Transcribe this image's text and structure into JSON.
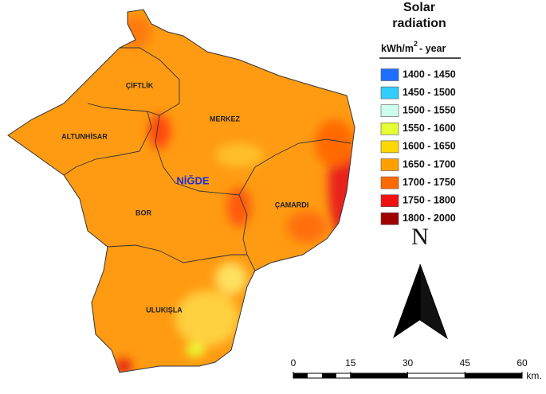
{
  "legend": {
    "title": "Solar radiation",
    "unit_base": "kWh/m",
    "unit_exponent": "2",
    "unit_rest": "- year",
    "items": [
      {
        "label": "1400 - 1450",
        "color": "#1f6fff"
      },
      {
        "label": "1450 - 1500",
        "color": "#33ccff"
      },
      {
        "label": "1500 - 1550",
        "color": "#ccffee"
      },
      {
        "label": "1550 - 1600",
        "color": "#e6ff33"
      },
      {
        "label": "1600 - 1650",
        "color": "#ffd700"
      },
      {
        "label": "1650 - 1700",
        "color": "#ffa000"
      },
      {
        "label": "1700 - 1750",
        "color": "#ff6a00"
      },
      {
        "label": "1750 - 1800",
        "color": "#f01010"
      },
      {
        "label": "1800 - 2000",
        "color": "#a00000"
      }
    ]
  },
  "districts": [
    "ÇİFTLİK",
    "ALTUNHİSAR",
    "MERKEZ",
    "BOR",
    "ÇAMARDI",
    "ULUKIŞLA"
  ],
  "province": "NİĞDE",
  "north": "N",
  "scale": {
    "ticks": [
      0,
      15,
      30,
      45,
      60
    ],
    "unit": "km."
  }
}
